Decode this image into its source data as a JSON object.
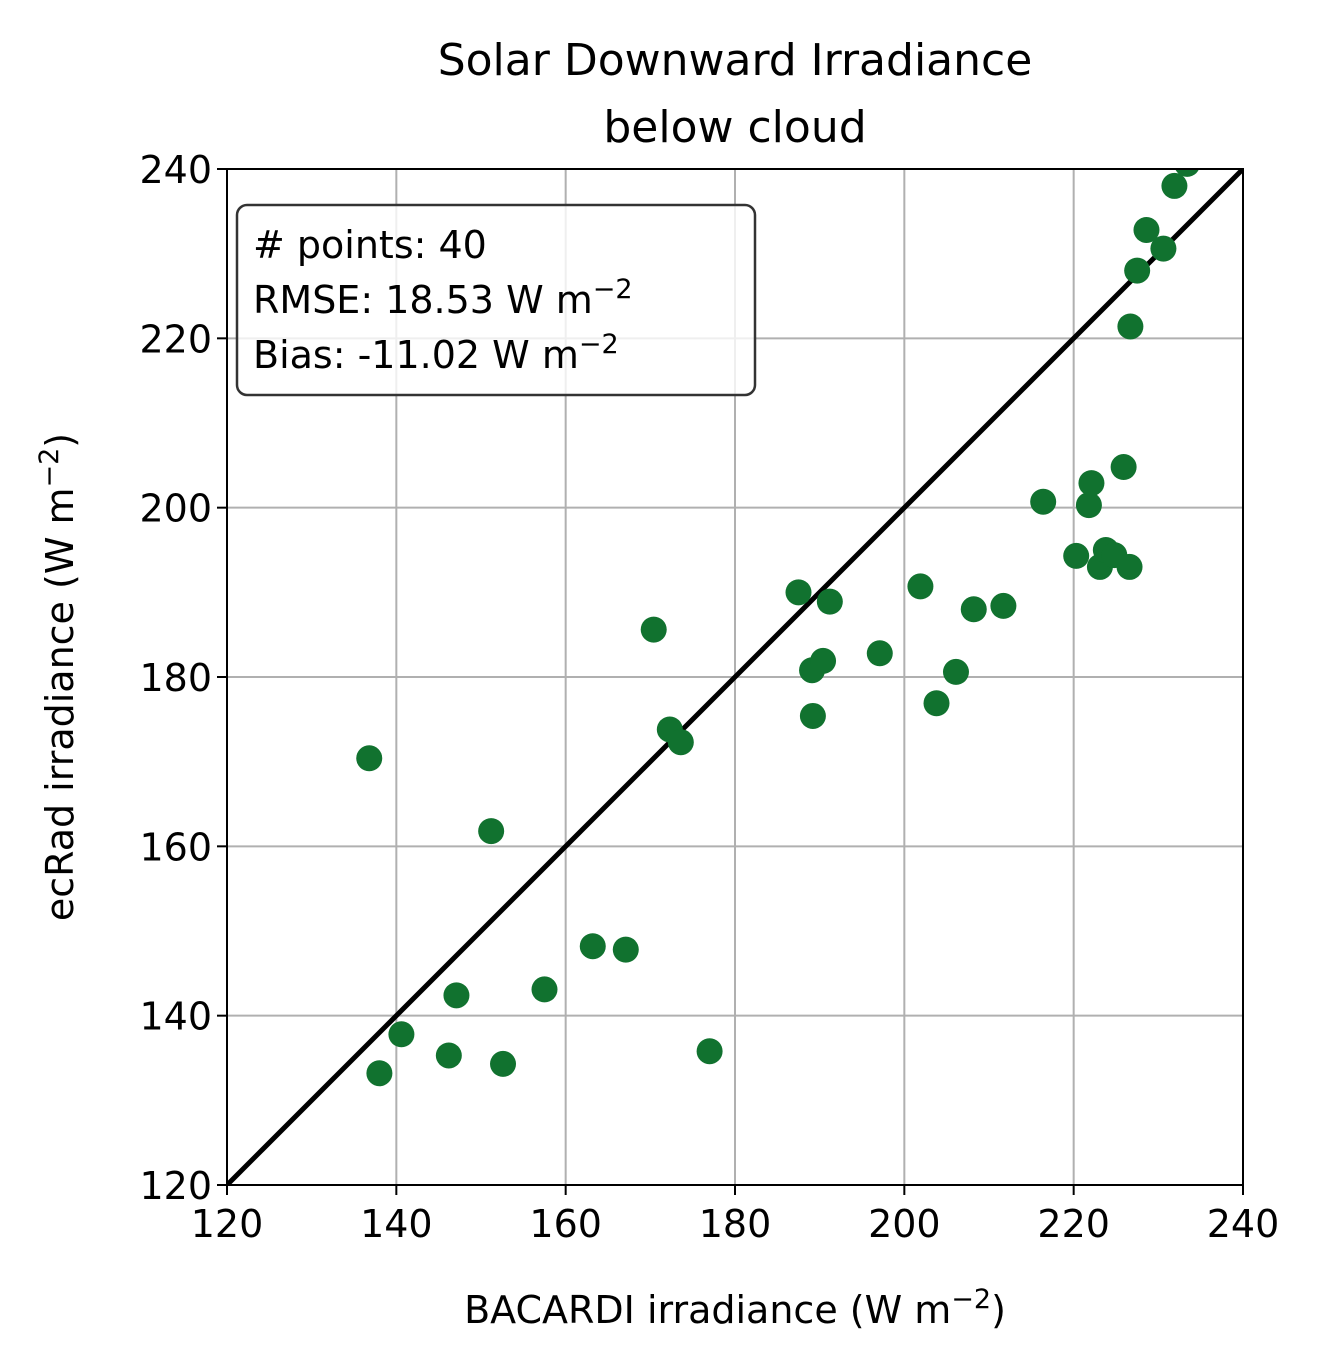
{
  "chart_data": {
    "type": "scatter",
    "title_line1": "Solar Downward Irradiance",
    "title_line2": "below cloud",
    "xlabel": "BACARDI irradiance (W m",
    "ylabel": "ecRad irradiance (W m",
    "unit_exponent": "−2",
    "xlim": [
      120,
      240
    ],
    "ylim": [
      120,
      240
    ],
    "xticks": [
      "120",
      "140",
      "160",
      "180",
      "200",
      "220",
      "240"
    ],
    "yticks": [
      "120",
      "140",
      "160",
      "180",
      "200",
      "220",
      "240"
    ],
    "grid": true,
    "reference_line": "1:1",
    "colors": {
      "points": "#11722f",
      "reference_line": "#000000",
      "grid": "#b0b0b0"
    },
    "stats_box": {
      "points": "# points: 40",
      "rmse": "RMSE: 18.53 W m",
      "bias": "Bias: -11.02 W m",
      "exponent": "−2"
    },
    "series": [
      {
        "points": [
          [
            136.8,
            170.4
          ],
          [
            138.0,
            133.2
          ],
          [
            140.6,
            137.8
          ],
          [
            146.2,
            135.3
          ],
          [
            147.1,
            142.4
          ],
          [
            151.2,
            161.8
          ],
          [
            152.6,
            134.3
          ],
          [
            157.5,
            143.1
          ],
          [
            163.2,
            148.2
          ],
          [
            167.1,
            147.8
          ],
          [
            170.4,
            185.6
          ],
          [
            172.3,
            173.8
          ],
          [
            173.6,
            172.3
          ],
          [
            177.0,
            135.8
          ],
          [
            187.5,
            190.0
          ],
          [
            189.1,
            180.8
          ],
          [
            189.2,
            175.4
          ],
          [
            190.4,
            181.9
          ],
          [
            191.2,
            188.9
          ],
          [
            197.1,
            182.8
          ],
          [
            201.9,
            190.7
          ],
          [
            203.8,
            176.9
          ],
          [
            206.1,
            180.6
          ],
          [
            208.2,
            188.0
          ],
          [
            211.7,
            188.4
          ],
          [
            216.4,
            200.7
          ],
          [
            220.3,
            194.3
          ],
          [
            221.8,
            200.3
          ],
          [
            222.1,
            202.9
          ],
          [
            223.1,
            193.0
          ],
          [
            223.8,
            195.0
          ],
          [
            224.8,
            194.4
          ],
          [
            225.9,
            204.8
          ],
          [
            226.6,
            193.0
          ],
          [
            226.7,
            221.4
          ],
          [
            227.5,
            228.0
          ],
          [
            228.6,
            232.8
          ],
          [
            230.6,
            230.6
          ],
          [
            231.9,
            238.0
          ],
          [
            233.4,
            240.6
          ]
        ]
      }
    ]
  }
}
